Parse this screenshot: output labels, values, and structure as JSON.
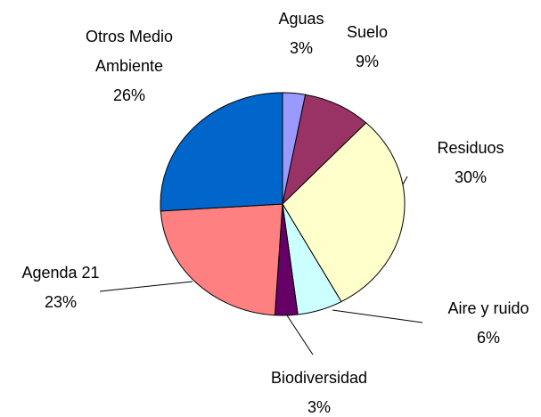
{
  "chart_data": {
    "type": "pie",
    "categories": [
      "Aguas",
      "Suelo",
      "Residuos",
      "Aire y ruido",
      "Biodiversidad",
      "Agenda 21",
      "Otros Medio Ambiente"
    ],
    "values": [
      3,
      9,
      30,
      6,
      3,
      23,
      26
    ],
    "value_labels": [
      "3%",
      "9%",
      "30%",
      "6%",
      "3%",
      "23%",
      "26%"
    ],
    "colors": [
      "#9999ff",
      "#993366",
      "#ffffcc",
      "#ccffff",
      "#660066",
      "#ff8080",
      "#0066cc"
    ]
  }
}
